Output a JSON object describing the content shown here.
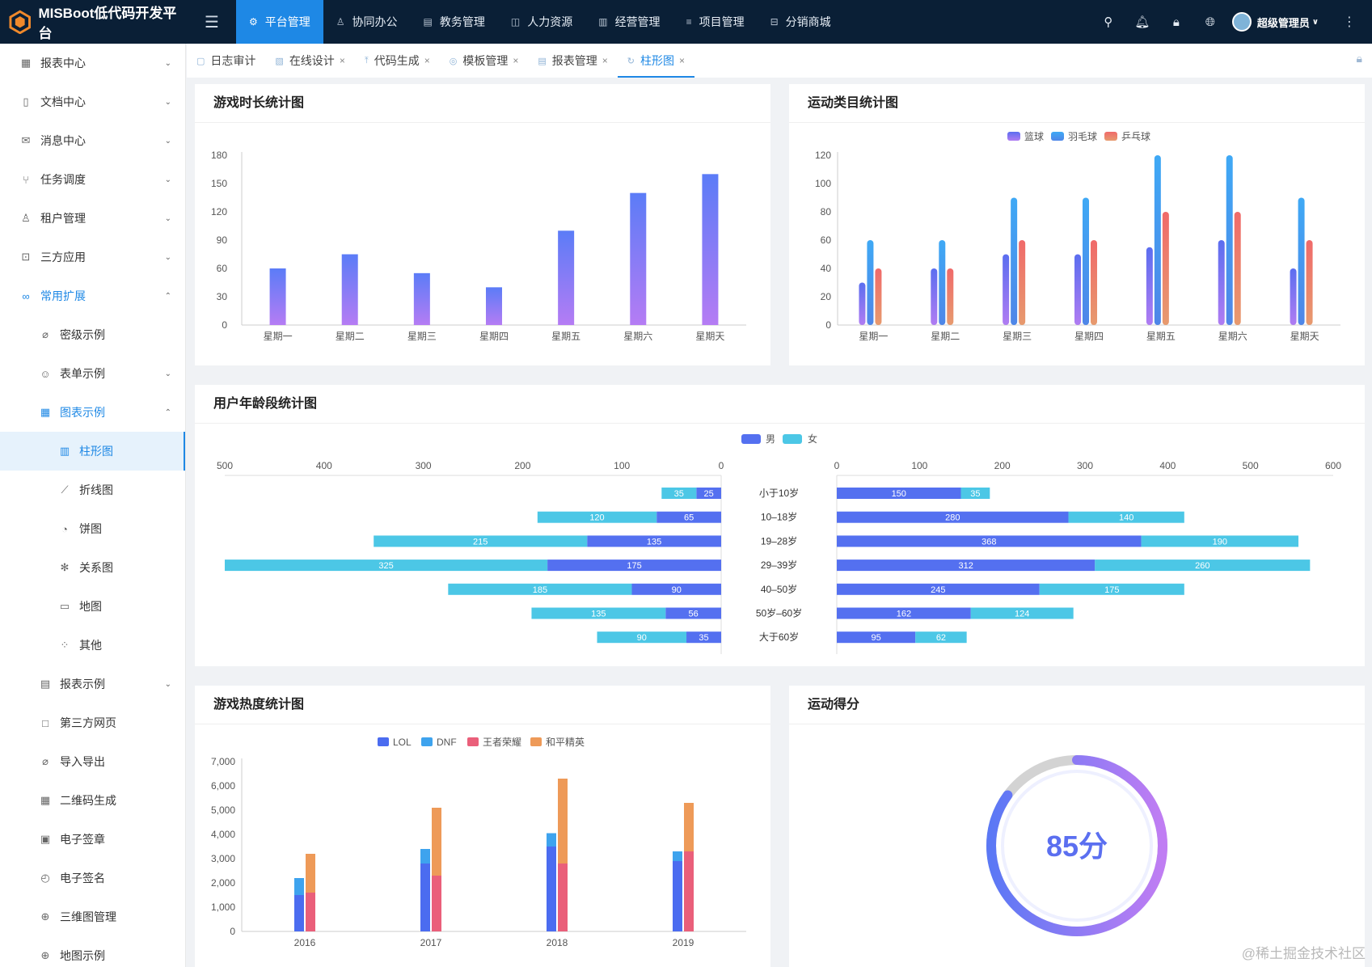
{
  "header": {
    "brand": "MISBoot低代码开发平台",
    "nav": [
      {
        "label": "平台管理",
        "icon": "gear-icon",
        "active": true
      },
      {
        "label": "协同办公",
        "icon": "user-icon"
      },
      {
        "label": "教务管理",
        "icon": "card-icon"
      },
      {
        "label": "人力资源",
        "icon": "window-icon"
      },
      {
        "label": "经营管理",
        "icon": "bar-chart-icon"
      },
      {
        "label": "项目管理",
        "icon": "list-icon"
      },
      {
        "label": "分销商城",
        "icon": "shop-icon"
      }
    ],
    "user": "超级管理员"
  },
  "sidebar": [
    {
      "label": "报表中心",
      "icon": "chart-icon",
      "level": 1,
      "arrow": "down"
    },
    {
      "label": "文档中心",
      "icon": "document-icon",
      "level": 1,
      "arrow": "down"
    },
    {
      "label": "消息中心",
      "icon": "message-icon",
      "level": 1,
      "arrow": "down"
    },
    {
      "label": "任务调度",
      "icon": "branch-icon",
      "level": 1,
      "arrow": "down"
    },
    {
      "label": "租户管理",
      "icon": "users-icon",
      "level": 1,
      "arrow": "down"
    },
    {
      "label": "三方应用",
      "icon": "box-icon",
      "level": 1,
      "arrow": "down"
    },
    {
      "label": "常用扩展",
      "icon": "link-icon",
      "level": 1,
      "arrow": "up",
      "state": "open"
    },
    {
      "label": "密级示例",
      "icon": "clip-icon",
      "level": 2
    },
    {
      "label": "表单示例",
      "icon": "smile-icon",
      "level": 2,
      "arrow": "down"
    },
    {
      "label": "图表示例",
      "icon": "chart-icon",
      "level": 2,
      "arrow": "up",
      "state": "open"
    },
    {
      "label": "柱形图",
      "icon": "bar-chart-icon",
      "level": 3,
      "state": "selected"
    },
    {
      "label": "折线图",
      "icon": "line-chart-icon",
      "level": 3
    },
    {
      "label": "饼图",
      "icon": "pie-chart-icon",
      "level": 3
    },
    {
      "label": "关系图",
      "icon": "relation-icon",
      "level": 3
    },
    {
      "label": "地图",
      "icon": "map-icon",
      "level": 3
    },
    {
      "label": "其他",
      "icon": "scatter-icon",
      "level": 3
    },
    {
      "label": "报表示例",
      "icon": "report-icon",
      "level": 2,
      "arrow": "down"
    },
    {
      "label": "第三方网页",
      "icon": "square-icon",
      "level": 2
    },
    {
      "label": "导入导出",
      "icon": "clip-icon",
      "level": 2
    },
    {
      "label": "二维码生成",
      "icon": "qrcode-icon",
      "level": 2
    },
    {
      "label": "电子签章",
      "icon": "stamp-icon",
      "level": 2
    },
    {
      "label": "电子签名",
      "icon": "sign-icon",
      "level": 2
    },
    {
      "label": "三维图管理",
      "icon": "globe-icon",
      "level": 2
    },
    {
      "label": "地图示例",
      "icon": "globe-icon",
      "level": 2
    }
  ],
  "tabs": [
    {
      "label": "日志审计",
      "icon": "log-icon",
      "closable": false
    },
    {
      "label": "在线设计",
      "icon": "design-icon",
      "closable": true
    },
    {
      "label": "代码生成",
      "icon": "upload-icon",
      "closable": true
    },
    {
      "label": "模板管理",
      "icon": "template-icon",
      "closable": true
    },
    {
      "label": "报表管理",
      "icon": "report-icon",
      "closable": true
    },
    {
      "label": "柱形图",
      "icon": "refresh-icon",
      "closable": true,
      "active": true
    }
  ],
  "cards": {
    "game_time": "游戏时长统计图",
    "sport": "运动类目统计图",
    "age": "用户年龄段统计图",
    "game_heat": "游戏热度统计图",
    "score": "运动得分"
  },
  "chart_data": [
    {
      "id": "game_time",
      "type": "bar",
      "categories": [
        "星期一",
        "星期二",
        "星期三",
        "星期四",
        "星期五",
        "星期六",
        "星期天"
      ],
      "values": [
        60,
        75,
        55,
        40,
        100,
        140,
        160
      ],
      "ylim": [
        0,
        180
      ],
      "yticks": [
        0,
        30,
        60,
        90,
        120,
        150,
        180
      ],
      "colors": [
        "#5b7cf7",
        "#b57cf4"
      ]
    },
    {
      "id": "sport",
      "type": "bar",
      "categories": [
        "星期一",
        "星期二",
        "星期三",
        "星期四",
        "星期五",
        "星期六",
        "星期天"
      ],
      "series": [
        {
          "name": "篮球",
          "values": [
            30,
            40,
            50,
            50,
            55,
            60,
            40
          ],
          "colors": [
            "#5b6ef0",
            "#b07cf2"
          ]
        },
        {
          "name": "羽毛球",
          "values": [
            60,
            60,
            90,
            90,
            120,
            120,
            90
          ],
          "colors": [
            "#3fa9f5",
            "#4f86e8"
          ]
        },
        {
          "name": "乒乓球",
          "values": [
            40,
            40,
            60,
            60,
            80,
            80,
            60
          ],
          "colors": [
            "#f06a6a",
            "#e79a6e"
          ]
        }
      ],
      "ylim": [
        0,
        120
      ],
      "yticks": [
        0,
        20,
        40,
        60,
        80,
        100,
        120
      ],
      "legend": "top-center"
    },
    {
      "id": "age",
      "type": "bar",
      "orientation": "horizontal-butterfly",
      "categories": [
        "小于10岁",
        "10–18岁",
        "19–28岁",
        "29–39岁",
        "40–50岁",
        "50岁–60岁",
        "大于60岁"
      ],
      "left": {
        "xlim": [
          0,
          500
        ],
        "xticks": [
          500,
          400,
          300,
          200,
          100,
          0
        ],
        "series": [
          {
            "name": "男",
            "values": [
              25,
              65,
              135,
              175,
              90,
              56,
              35
            ]
          },
          {
            "name": "女",
            "values": [
              35,
              120,
              215,
              325,
              185,
              135,
              90
            ]
          }
        ]
      },
      "right": {
        "xlim": [
          0,
          600
        ],
        "xticks": [
          0,
          100,
          200,
          300,
          400,
          500,
          600
        ],
        "series": [
          {
            "name": "男",
            "values": [
              150,
              280,
              368,
              312,
              245,
              162,
              95
            ]
          },
          {
            "name": "女",
            "values": [
              35,
              140,
              190,
              260,
              175,
              124,
              62
            ]
          }
        ]
      },
      "legend": [
        "男",
        "女"
      ],
      "colors": {
        "男": "#5470f0",
        "女": "#4cc7e6"
      }
    },
    {
      "id": "game_heat",
      "type": "bar",
      "stacked": true,
      "categories": [
        "2016",
        "2017",
        "2018",
        "2019"
      ],
      "stack_a": [
        {
          "name": "LOL",
          "values": [
            1500,
            2800,
            3500,
            2900
          ],
          "color": "#4b6cf0"
        },
        {
          "name": "DNF",
          "values": [
            700,
            600,
            550,
            400
          ],
          "color": "#3ea3ee"
        }
      ],
      "stack_b": [
        {
          "name": "王者荣耀",
          "values": [
            1600,
            2300,
            2800,
            3300
          ],
          "color": "#ea5f7a"
        },
        {
          "name": "和平精英",
          "values": [
            1600,
            2800,
            3500,
            2000
          ],
          "color": "#ee9a58"
        }
      ],
      "ylim": [
        0,
        7000
      ],
      "yticks": [
        "0",
        "1,000",
        "2,000",
        "3,000",
        "4,000",
        "5,000",
        "6,000",
        "7,000"
      ],
      "legend": [
        "LOL",
        "DNF",
        "王者荣耀",
        "和平精英"
      ]
    },
    {
      "id": "score",
      "type": "gauge",
      "value": 85,
      "max": 100,
      "label": "85分"
    }
  ],
  "watermark": "@稀土掘金技术社区"
}
